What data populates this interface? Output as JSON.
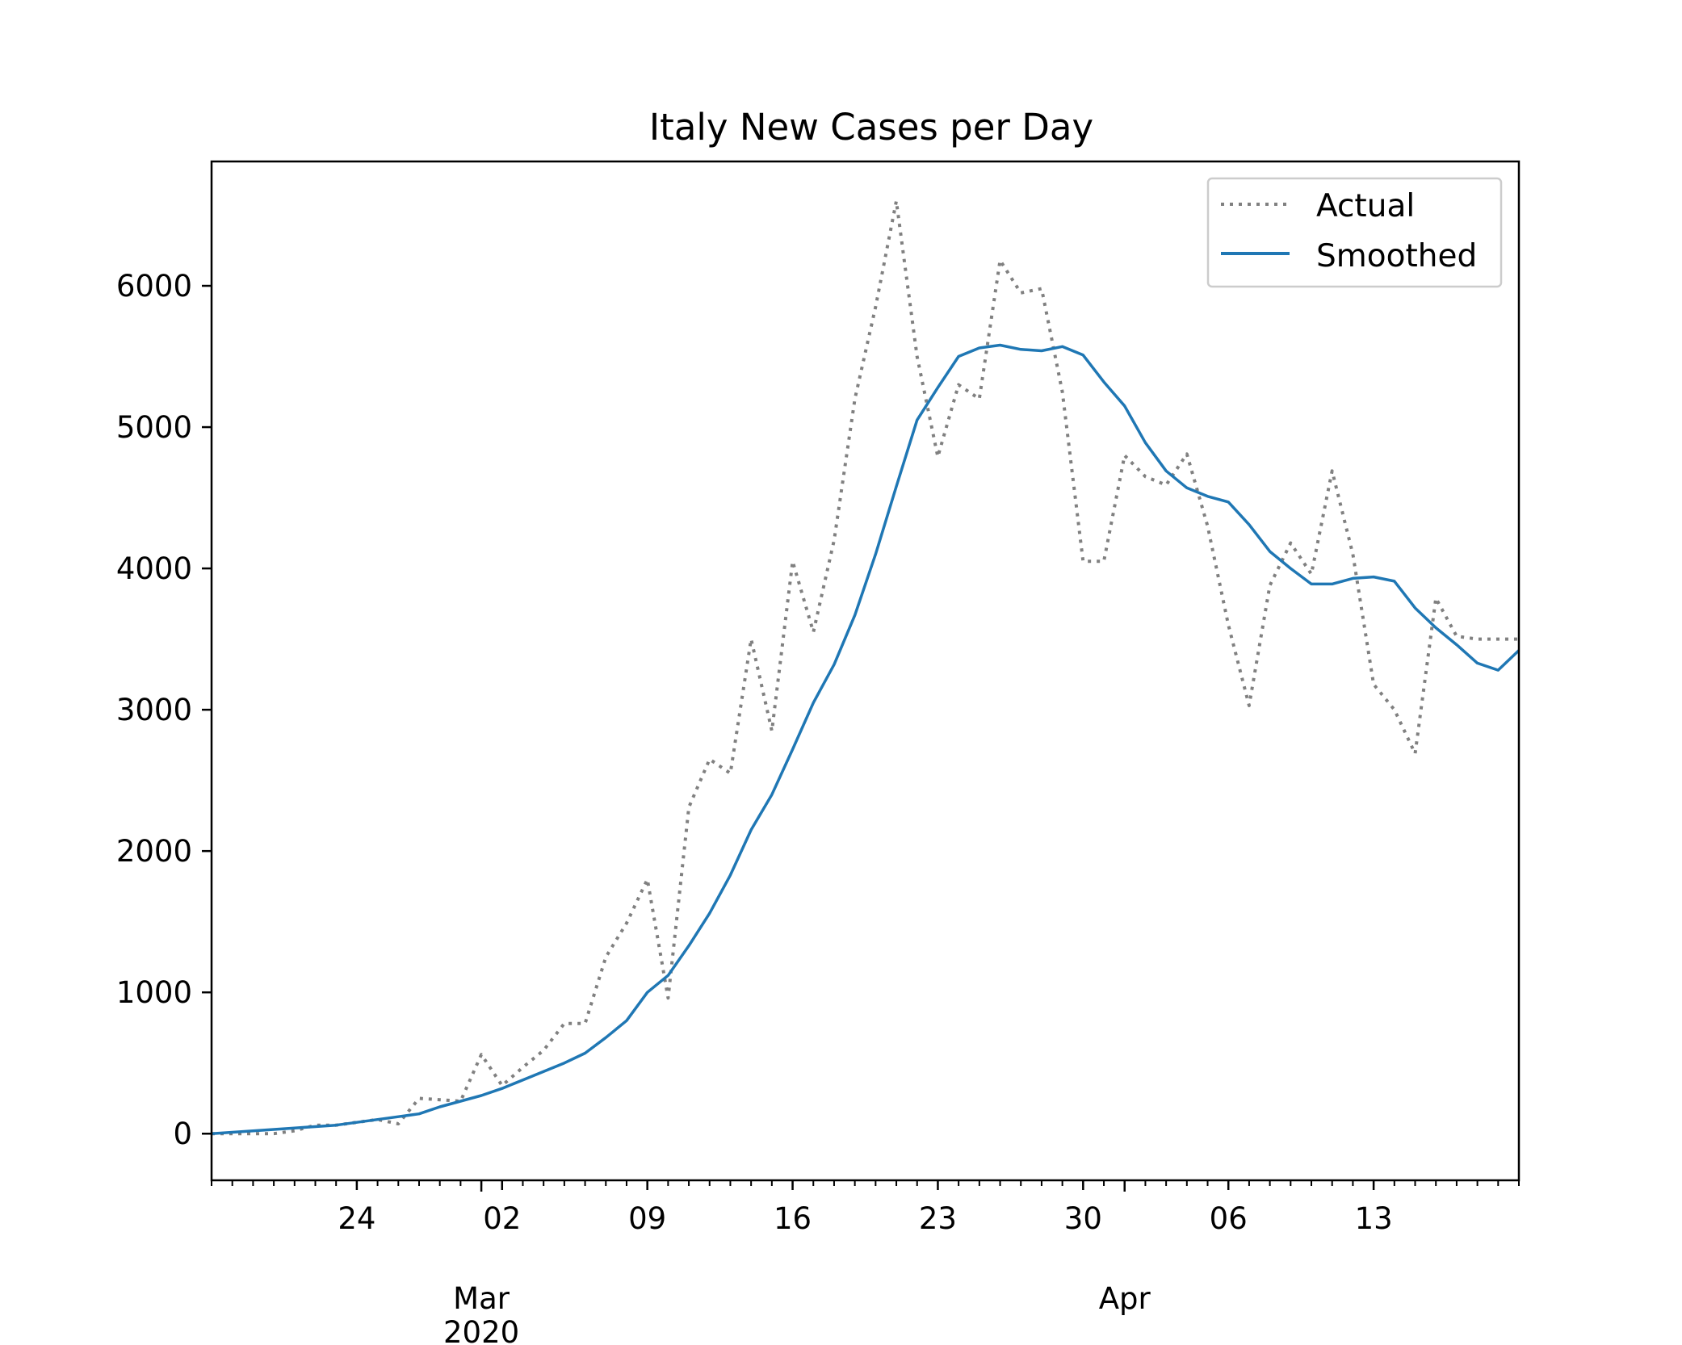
{
  "chart_data": {
    "type": "line",
    "title": "Italy New Cases per Day",
    "xlabel": "",
    "ylabel": "",
    "x_start": "2020-02-17",
    "x_end": "2020-04-20",
    "xlim": [
      "2020-02-17",
      "2020-04-20"
    ],
    "ylim": [
      -330,
      6880
    ],
    "grid": false,
    "legend_position": "top-right",
    "y_ticks": [
      {
        "value": 0,
        "label": "0"
      },
      {
        "value": 1000,
        "label": "1000"
      },
      {
        "value": 2000,
        "label": "2000"
      },
      {
        "value": 3000,
        "label": "3000"
      },
      {
        "value": 4000,
        "label": "4000"
      },
      {
        "value": 5000,
        "label": "5000"
      },
      {
        "value": 6000,
        "label": "6000"
      }
    ],
    "x_major_ticks": [
      {
        "date": "2020-02-24",
        "label": "24"
      },
      {
        "date": "2020-03-02",
        "label": "02"
      },
      {
        "date": "2020-03-09",
        "label": "09"
      },
      {
        "date": "2020-03-16",
        "label": "16"
      },
      {
        "date": "2020-03-23",
        "label": "23"
      },
      {
        "date": "2020-03-30",
        "label": "30"
      },
      {
        "date": "2020-04-06",
        "label": "06"
      },
      {
        "date": "2020-04-13",
        "label": "13"
      }
    ],
    "x_month_labels": [
      {
        "date": "2020-03-01",
        "label": "Mar",
        "sublabel": "2020"
      },
      {
        "date": "2020-04-01",
        "label": "Apr",
        "sublabel": ""
      }
    ],
    "series": [
      {
        "name": "Actual",
        "color": "#808080",
        "style": "dotted",
        "x": [
          "2020-02-17",
          "2020-02-18",
          "2020-02-19",
          "2020-02-20",
          "2020-02-21",
          "2020-02-22",
          "2020-02-23",
          "2020-02-24",
          "2020-02-25",
          "2020-02-26",
          "2020-02-27",
          "2020-02-28",
          "2020-02-29",
          "2020-03-01",
          "2020-03-02",
          "2020-03-03",
          "2020-03-04",
          "2020-03-05",
          "2020-03-06",
          "2020-03-07",
          "2020-03-08",
          "2020-03-09",
          "2020-03-10",
          "2020-03-11",
          "2020-03-12",
          "2020-03-13",
          "2020-03-14",
          "2020-03-15",
          "2020-03-16",
          "2020-03-17",
          "2020-03-18",
          "2020-03-19",
          "2020-03-20",
          "2020-03-21",
          "2020-03-22",
          "2020-03-23",
          "2020-03-24",
          "2020-03-25",
          "2020-03-26",
          "2020-03-27",
          "2020-03-28",
          "2020-03-29",
          "2020-03-30",
          "2020-03-31",
          "2020-04-01",
          "2020-04-02",
          "2020-04-03",
          "2020-04-04",
          "2020-04-05",
          "2020-04-06",
          "2020-04-07",
          "2020-04-08",
          "2020-04-09",
          "2020-04-10",
          "2020-04-11",
          "2020-04-12",
          "2020-04-13",
          "2020-04-14",
          "2020-04-15",
          "2020-04-16",
          "2020-04-17",
          "2020-04-18",
          "2020-04-19",
          "2020-04-20"
        ],
        "values": [
          0,
          0,
          0,
          0,
          20,
          60,
          60,
          80,
          100,
          70,
          250,
          240,
          230,
          560,
          340,
          470,
          590,
          780,
          780,
          1250,
          1490,
          1800,
          960,
          2310,
          2650,
          2550,
          3500,
          2850,
          4050,
          3550,
          4200,
          5200,
          5850,
          6600,
          5500,
          4790,
          5300,
          5200,
          6180,
          5950,
          5980,
          5250,
          4050,
          4050,
          4800,
          4650,
          4590,
          4810,
          4300,
          3600,
          3030,
          3880,
          4180,
          3960,
          4690,
          4100,
          3180,
          3000,
          2690,
          3790,
          3520,
          3500,
          3500,
          3500
        ]
      },
      {
        "name": "Smoothed",
        "color": "#1f77b4",
        "style": "solid",
        "x": [
          "2020-02-17",
          "2020-02-18",
          "2020-02-19",
          "2020-02-20",
          "2020-02-21",
          "2020-02-22",
          "2020-02-23",
          "2020-02-24",
          "2020-02-25",
          "2020-02-26",
          "2020-02-27",
          "2020-02-28",
          "2020-02-29",
          "2020-03-01",
          "2020-03-02",
          "2020-03-03",
          "2020-03-04",
          "2020-03-05",
          "2020-03-06",
          "2020-03-07",
          "2020-03-08",
          "2020-03-09",
          "2020-03-10",
          "2020-03-11",
          "2020-03-12",
          "2020-03-13",
          "2020-03-14",
          "2020-03-15",
          "2020-03-16",
          "2020-03-17",
          "2020-03-18",
          "2020-03-19",
          "2020-03-20",
          "2020-03-21",
          "2020-03-22",
          "2020-03-23",
          "2020-03-24",
          "2020-03-25",
          "2020-03-26",
          "2020-03-27",
          "2020-03-28",
          "2020-03-29",
          "2020-03-30",
          "2020-03-31",
          "2020-04-01",
          "2020-04-02",
          "2020-04-03",
          "2020-04-04",
          "2020-04-05",
          "2020-04-06",
          "2020-04-07",
          "2020-04-08",
          "2020-04-09",
          "2020-04-10",
          "2020-04-11",
          "2020-04-12",
          "2020-04-13",
          "2020-04-14",
          "2020-04-15",
          "2020-04-16",
          "2020-04-17",
          "2020-04-18",
          "2020-04-19",
          "2020-04-20"
        ],
        "values": [
          0,
          10,
          20,
          30,
          40,
          50,
          60,
          80,
          100,
          120,
          140,
          190,
          230,
          270,
          320,
          380,
          440,
          500,
          570,
          680,
          800,
          1000,
          1120,
          1330,
          1560,
          1830,
          2150,
          2400,
          2720,
          3050,
          3320,
          3670,
          4100,
          4580,
          5050,
          5280,
          5500,
          5560,
          5580,
          5550,
          5540,
          5570,
          5510,
          5320,
          5150,
          4890,
          4690,
          4570,
          4510,
          4470,
          4310,
          4120,
          4000,
          3890,
          3890,
          3930,
          3940,
          3910,
          3720,
          3580,
          3460,
          3330,
          3280,
          3420
        ]
      }
    ]
  }
}
